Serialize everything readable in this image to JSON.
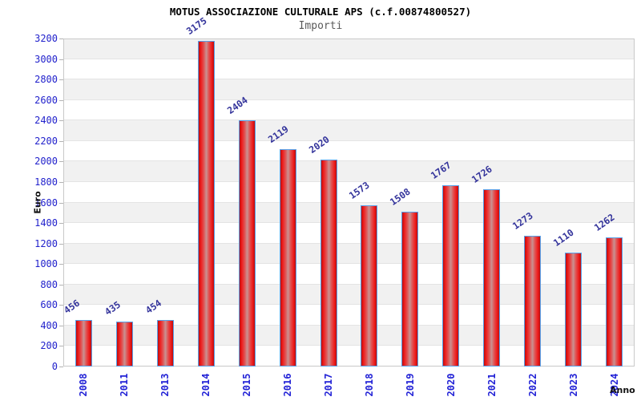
{
  "title": "MOTUS ASSOCIAZIONE CULTURALE APS (c.f.00874800527)",
  "subtitle": "Importi",
  "chart_data": {
    "type": "bar",
    "title": "MOTUS ASSOCIAZIONE CULTURALE APS (c.f.00874800527)",
    "subtitle": "Importi",
    "xlabel": "Anno",
    "ylabel": "Euro",
    "categories": [
      "2008",
      "2011",
      "2013",
      "2014",
      "2015",
      "2016",
      "2017",
      "2018",
      "2019",
      "2020",
      "2021",
      "2022",
      "2023",
      "2024"
    ],
    "values": [
      456,
      435,
      454,
      3175,
      2404,
      2119,
      2020,
      1573,
      1508,
      1767,
      1726,
      1273,
      1110,
      1262
    ],
    "ylim": [
      0,
      3200
    ],
    "ytick_step": 200,
    "legend": "none",
    "grid": "alternating-horizontal-bands",
    "value_labels_rotation_deg": -35,
    "x_labels_rotation_deg": -90,
    "colors": {
      "bar_red": "#ee1b1b",
      "bar_mid": "#e05555",
      "bar_center": "#c99292",
      "bar_edge_dark": "#bb0e0e",
      "bar_border": "#58a0e8",
      "band_gray": "#f1f1f1",
      "band_white": "#ffffff",
      "grid_line": "#e4e4e4",
      "plot_border": "#c9c9c9",
      "y_tick_color": "#2222cc",
      "x_tick_color": "#2222d6",
      "value_label_color": "#33339b",
      "title_color": "#000000",
      "subtitle_color": "#5a5a5a",
      "axis_title_color": "#111111"
    }
  }
}
